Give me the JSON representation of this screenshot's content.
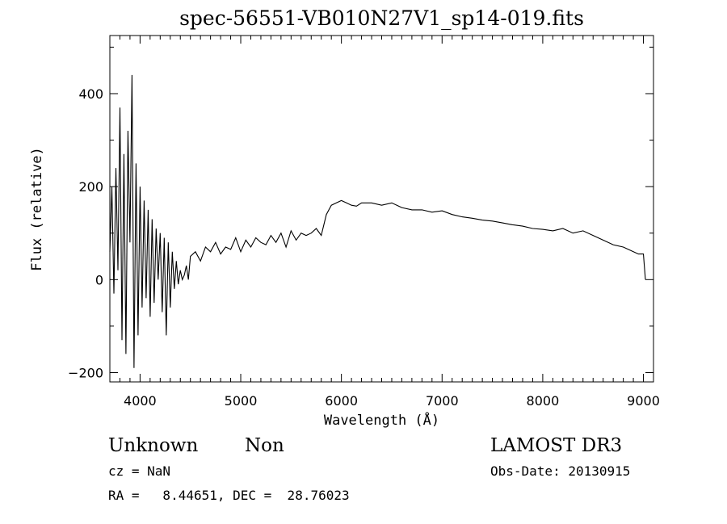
{
  "chart_data": {
    "type": "line",
    "title": "spec-56551-VB010N27V1_sp14-019.fits",
    "xlabel": "Wavelength (Å)",
    "ylabel": "Flux (relative)",
    "xlim": [
      3700,
      9100
    ],
    "ylim": [
      -220,
      525
    ],
    "x_ticks": [
      4000,
      5000,
      6000,
      7000,
      8000,
      9000
    ],
    "x_tick_labels": [
      "4000",
      "5000",
      "6000",
      "7000",
      "8000",
      "9000"
    ],
    "y_ticks": [
      -200,
      0,
      200,
      400
    ],
    "y_tick_labels": [
      "−200",
      "0",
      "200",
      "400"
    ],
    "grid": false,
    "series": [
      {
        "x": [
          3700,
          3720,
          3740,
          3760,
          3780,
          3800,
          3820,
          3840,
          3860,
          3880,
          3900,
          3920,
          3940,
          3960,
          3980,
          4000,
          4020,
          4040,
          4060,
          4080,
          4100,
          4120,
          4140,
          4160,
          4180,
          4200,
          4220,
          4240,
          4260,
          4280,
          4300,
          4320,
          4340,
          4360,
          4380,
          4400,
          4420,
          4440,
          4460,
          4480,
          4500,
          4550,
          4600,
          4650,
          4700,
          4750,
          4800,
          4850,
          4900,
          4950,
          5000,
          5050,
          5100,
          5150,
          5200,
          5250,
          5300,
          5350,
          5400,
          5450,
          5500,
          5550,
          5600,
          5650,
          5700,
          5750,
          5800,
          5850,
          5900,
          5950,
          6000,
          6050,
          6100,
          6150,
          6200,
          6300,
          6400,
          6500,
          6600,
          6700,
          6800,
          6900,
          7000,
          7100,
          7200,
          7300,
          7400,
          7500,
          7600,
          7700,
          7800,
          7900,
          8000,
          8100,
          8200,
          8300,
          8400,
          8500,
          8600,
          8700,
          8800,
          8900,
          8950,
          9000,
          9020
        ],
        "values": [
          60,
          200,
          -30,
          240,
          20,
          370,
          -130,
          270,
          -160,
          320,
          80,
          440,
          -190,
          250,
          -120,
          200,
          -60,
          170,
          -40,
          150,
          -80,
          130,
          -50,
          110,
          0,
          100,
          -70,
          90,
          -120,
          80,
          -60,
          60,
          -20,
          40,
          -10,
          20,
          0,
          10,
          30,
          0,
          50,
          60,
          40,
          70,
          60,
          80,
          55,
          70,
          65,
          90,
          60,
          85,
          70,
          90,
          80,
          75,
          95,
          80,
          100,
          70,
          105,
          85,
          100,
          95,
          100,
          110,
          95,
          140,
          160,
          165,
          170,
          165,
          160,
          158,
          165,
          165,
          160,
          165,
          155,
          150,
          150,
          145,
          148,
          140,
          135,
          132,
          128,
          126,
          122,
          118,
          115,
          110,
          108,
          105,
          110,
          100,
          105,
          95,
          85,
          75,
          70,
          60,
          55,
          55,
          0
        ]
      }
    ]
  },
  "footer": {
    "object_class": "Unknown",
    "subclass": "Non",
    "cz": "cz = NaN",
    "radec": "RA =   8.44651, DEC =  28.76023",
    "survey": "LAMOST DR3",
    "obs_date": "Obs-Date: 20130915"
  }
}
